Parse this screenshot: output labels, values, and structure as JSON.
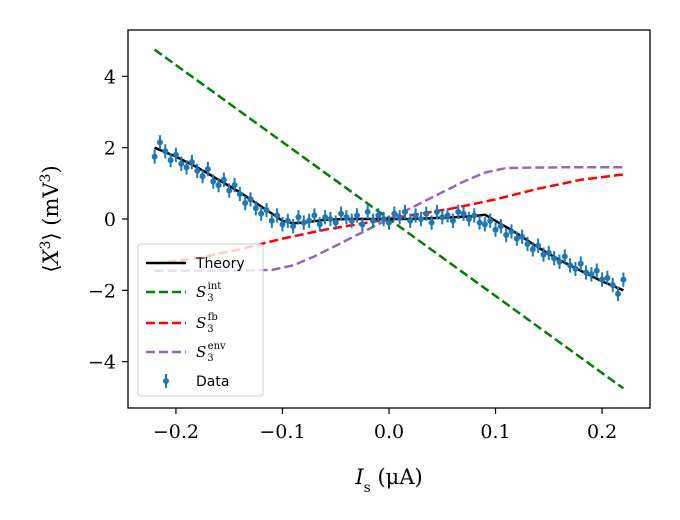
{
  "chart_data": {
    "type": "line",
    "title": "",
    "xlabel": "I_s (μA)",
    "xlabel_parts": {
      "var": "I",
      "sub": "s",
      "unit": " (μA)"
    },
    "ylabel": "⟨X³⟩ (mV³)",
    "ylabel_parts": {
      "open": "⟨",
      "var": "X",
      "sup": "3",
      "close": "⟩",
      "unit": " (mV",
      "unit_sup": "3",
      "unit_close": ")"
    },
    "xlim": [
      -0.245,
      0.245
    ],
    "ylim": [
      -5.3,
      5.3
    ],
    "xticks": [
      -0.2,
      -0.1,
      0.0,
      0.1,
      0.2
    ],
    "xtick_labels": [
      "−0.2",
      "−0.1",
      "0.0",
      "0.1",
      "0.2"
    ],
    "yticks": [
      -4,
      -2,
      0,
      2,
      4
    ],
    "ytick_labels": [
      "−4",
      "−2",
      "0",
      "2",
      "4"
    ],
    "grid": false,
    "legend_position": "lower-left",
    "series": [
      {
        "name": "Theory",
        "style": "solid",
        "color": "#000000",
        "x": [
          -0.22,
          -0.2,
          -0.18,
          -0.16,
          -0.14,
          -0.12,
          -0.1,
          -0.09,
          -0.08,
          -0.06,
          -0.04,
          -0.02,
          0.0,
          0.02,
          0.04,
          0.06,
          0.08,
          0.09,
          0.1,
          0.12,
          0.14,
          0.16,
          0.18,
          0.2,
          0.22
        ],
        "y": [
          2.0,
          1.75,
          1.45,
          1.1,
          0.75,
          0.35,
          -0.05,
          -0.12,
          -0.1,
          -0.02,
          0.0,
          0.0,
          0.0,
          0.0,
          0.02,
          0.05,
          0.08,
          0.12,
          -0.05,
          -0.4,
          -0.8,
          -1.15,
          -1.45,
          -1.75,
          -2.0
        ]
      },
      {
        "name": "S_3^int",
        "label_main": "S",
        "label_sub": "3",
        "label_sup": "int",
        "style": "dashed",
        "color": "#008000",
        "x": [
          -0.22,
          0.22
        ],
        "y": [
          4.75,
          -4.75
        ]
      },
      {
        "name": "S_3^fb",
        "label_main": "S",
        "label_sub": "3",
        "label_sup": "fb",
        "style": "dashed",
        "color": "#ff0000",
        "x": [
          -0.22,
          -0.18,
          -0.14,
          -0.1,
          -0.06,
          -0.02,
          0.0,
          0.02,
          0.06,
          0.1,
          0.14,
          0.18,
          0.22
        ],
        "y": [
          -1.25,
          -1.1,
          -0.85,
          -0.55,
          -0.3,
          -0.1,
          0.0,
          0.1,
          0.3,
          0.55,
          0.85,
          1.1,
          1.25
        ]
      },
      {
        "name": "S_3^env",
        "label_main": "S",
        "label_sub": "3",
        "label_sup": "env",
        "style": "dashed",
        "color": "#9467bd",
        "x": [
          -0.22,
          -0.16,
          -0.11,
          -0.09,
          -0.07,
          -0.05,
          -0.03,
          -0.01,
          0.0,
          0.01,
          0.03,
          0.05,
          0.07,
          0.09,
          0.11,
          0.16,
          0.22
        ],
        "y": [
          -1.45,
          -1.45,
          -1.43,
          -1.3,
          -1.05,
          -0.75,
          -0.45,
          -0.15,
          0.0,
          0.15,
          0.45,
          0.75,
          1.05,
          1.3,
          1.43,
          1.45,
          1.45
        ]
      },
      {
        "name": "Data",
        "style": "errorbar",
        "color": "#1f77b4",
        "x": [
          -0.22,
          -0.215,
          -0.21,
          -0.205,
          -0.2,
          -0.195,
          -0.19,
          -0.185,
          -0.18,
          -0.175,
          -0.17,
          -0.165,
          -0.16,
          -0.155,
          -0.15,
          -0.145,
          -0.14,
          -0.135,
          -0.13,
          -0.125,
          -0.12,
          -0.115,
          -0.11,
          -0.105,
          -0.1,
          -0.095,
          -0.09,
          -0.085,
          -0.08,
          -0.075,
          -0.07,
          -0.065,
          -0.06,
          -0.055,
          -0.05,
          -0.045,
          -0.04,
          -0.035,
          -0.03,
          -0.025,
          -0.02,
          -0.015,
          -0.01,
          -0.005,
          0.0,
          0.005,
          0.01,
          0.015,
          0.02,
          0.025,
          0.03,
          0.035,
          0.04,
          0.045,
          0.05,
          0.055,
          0.06,
          0.065,
          0.07,
          0.075,
          0.08,
          0.085,
          0.09,
          0.095,
          0.1,
          0.105,
          0.11,
          0.115,
          0.12,
          0.125,
          0.13,
          0.135,
          0.14,
          0.145,
          0.15,
          0.155,
          0.16,
          0.165,
          0.17,
          0.175,
          0.18,
          0.185,
          0.19,
          0.195,
          0.2,
          0.205,
          0.21,
          0.215,
          0.22
        ],
        "y": [
          1.75,
          2.15,
          1.9,
          1.65,
          1.8,
          1.55,
          1.45,
          1.6,
          1.35,
          1.2,
          1.4,
          1.05,
          0.95,
          1.1,
          0.8,
          0.95,
          0.7,
          0.45,
          0.55,
          0.3,
          0.15,
          0.25,
          -0.05,
          0.1,
          -0.15,
          -0.05,
          -0.2,
          0.05,
          -0.1,
          -0.05,
          0.1,
          -0.15,
          0.05,
          0.0,
          -0.1,
          0.15,
          0.05,
          -0.05,
          0.1,
          -0.15,
          0.2,
          -0.05,
          0.1,
          0.0,
          -0.1,
          0.15,
          0.05,
          0.2,
          -0.05,
          0.1,
          0.0,
          0.15,
          -0.1,
          0.2,
          0.05,
          0.1,
          -0.05,
          0.2,
          0.15,
          0.0,
          0.1,
          -0.1,
          -0.15,
          -0.05,
          -0.3,
          -0.2,
          -0.45,
          -0.35,
          -0.55,
          -0.5,
          -0.7,
          -0.85,
          -0.75,
          -1.0,
          -0.95,
          -1.1,
          -1.2,
          -1.05,
          -1.3,
          -1.4,
          -1.25,
          -1.5,
          -1.55,
          -1.45,
          -1.7,
          -1.65,
          -1.85,
          -2.1,
          -1.7
        ],
        "yerr": 0.2
      }
    ]
  }
}
